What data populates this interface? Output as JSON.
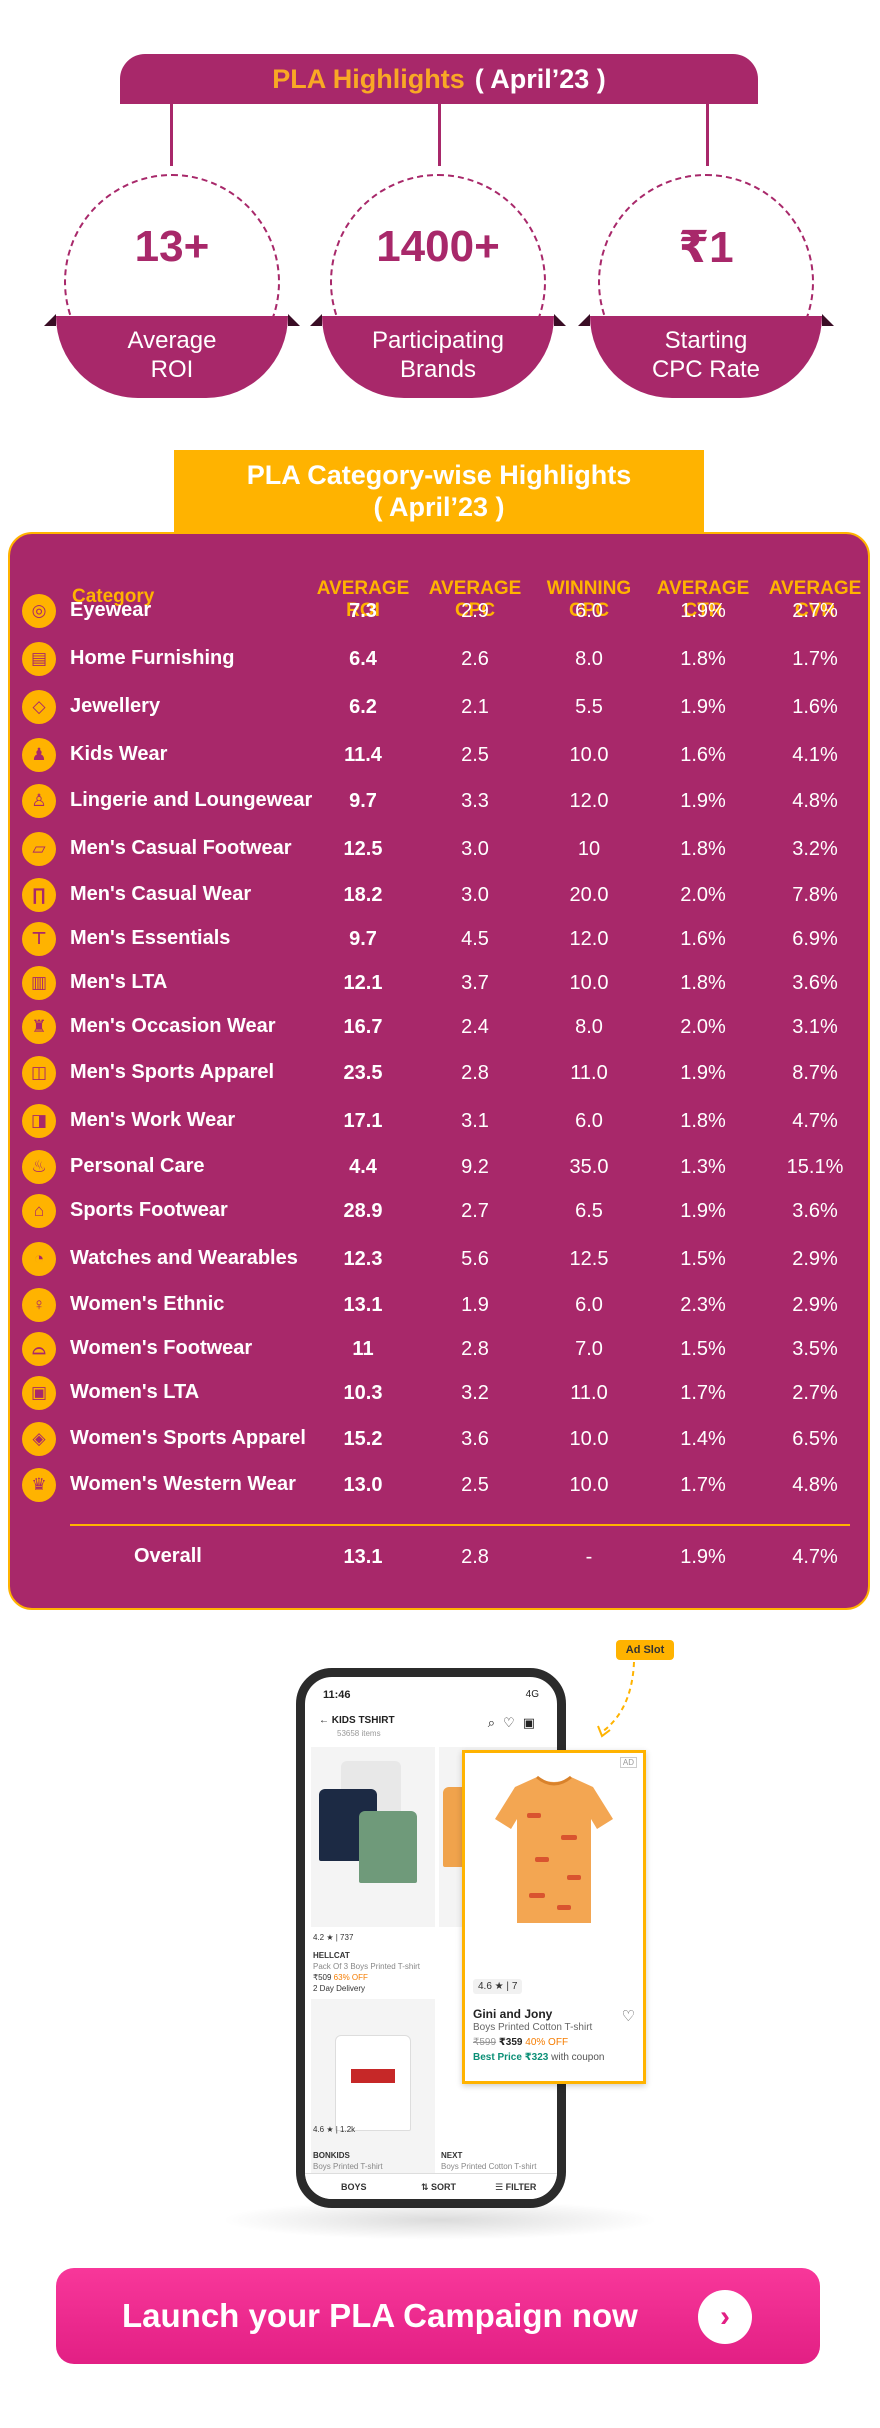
{
  "colors": {
    "primary": "#a8286a",
    "accent": "#ffb300",
    "cta": "#e21f84"
  },
  "highlights": {
    "title_highlight": "PLA Highlights",
    "title_rest": "( April’23 )",
    "stats": [
      {
        "value": "13+",
        "label1": "Average",
        "label2": "ROI"
      },
      {
        "value": "1400+",
        "label1": "Participating",
        "label2": "Brands"
      },
      {
        "value": "₹1",
        "label1": "Starting",
        "label2": "CPC Rate"
      }
    ]
  },
  "category_table": {
    "title_line1": "PLA Category-wise Highlights",
    "title_line2": "( April’23 )",
    "headers": {
      "category": "Category",
      "roi1": "AVERAGE",
      "roi2": "ROI",
      "cpc1": "AVERAGE",
      "cpc2": "CPC",
      "wcpc1": "WINNING",
      "wcpc2": "CPC",
      "ctr1": "AVERAGE",
      "ctr2": "CTR",
      "cvr1": "AVERAGE",
      "cvr2": "CVR"
    },
    "rows": [
      {
        "icon": "eyewear-icon",
        "glyph": "◎",
        "name": "Eyewear",
        "roi": "7.3",
        "cpc": "2.9",
        "wcpc": "6.0",
        "ctr": "1.9%",
        "cvr": "2.7%"
      },
      {
        "icon": "home-furnishing-icon",
        "glyph": "▤",
        "name": "Home Furnishing",
        "roi": "6.4",
        "cpc": "2.6",
        "wcpc": "8.0",
        "ctr": "1.8%",
        "cvr": "1.7%"
      },
      {
        "icon": "jewellery-icon",
        "glyph": "◇",
        "name": "Jewellery",
        "roi": "6.2",
        "cpc": "2.1",
        "wcpc": "5.5",
        "ctr": "1.9%",
        "cvr": "1.6%"
      },
      {
        "icon": "kids-wear-icon",
        "glyph": "♟",
        "name": "Kids Wear",
        "roi": "11.4",
        "cpc": "2.5",
        "wcpc": "10.0",
        "ctr": "1.6%",
        "cvr": "4.1%"
      },
      {
        "icon": "lingerie-icon",
        "glyph": "♙",
        "name": "Lingerie and Loungewear",
        "roi": "9.7",
        "cpc": "3.3",
        "wcpc": "12.0",
        "ctr": "1.9%",
        "cvr": "4.8%"
      },
      {
        "icon": "casual-footwear-icon",
        "glyph": "▱",
        "name": "Men's Casual Footwear",
        "roi": "12.5",
        "cpc": "3.0",
        "wcpc": "10",
        "ctr": "1.8%",
        "cvr": "3.2%"
      },
      {
        "icon": "trousers-icon",
        "glyph": "∏",
        "name": "Men's Casual Wear",
        "roi": "18.2",
        "cpc": "3.0",
        "wcpc": "20.0",
        "ctr": "2.0%",
        "cvr": "7.8%"
      },
      {
        "icon": "tshirt-icon",
        "glyph": "⊤",
        "name": "Men's Essentials",
        "roi": "9.7",
        "cpc": "4.5",
        "wcpc": "12.0",
        "ctr": "1.6%",
        "cvr": "6.9%"
      },
      {
        "icon": "lta-icon",
        "glyph": "▥",
        "name": "Men's LTA",
        "roi": "12.1",
        "cpc": "3.7",
        "wcpc": "10.0",
        "ctr": "1.8%",
        "cvr": "3.6%"
      },
      {
        "icon": "occasion-wear-icon",
        "glyph": "♜",
        "name": "Men's Occasion Wear",
        "roi": "16.7",
        "cpc": "2.4",
        "wcpc": "8.0",
        "ctr": "2.0%",
        "cvr": "3.1%"
      },
      {
        "icon": "sports-apparel-icon",
        "glyph": "◫",
        "name": "Men's Sports Apparel",
        "roi": "23.5",
        "cpc": "2.8",
        "wcpc": "11.0",
        "ctr": "1.9%",
        "cvr": "8.7%"
      },
      {
        "icon": "work-wear-icon",
        "glyph": "◨",
        "name": "Men's Work Wear",
        "roi": "17.1",
        "cpc": "3.1",
        "wcpc": "6.0",
        "ctr": "1.8%",
        "cvr": "4.7%"
      },
      {
        "icon": "personal-care-icon",
        "glyph": "♨",
        "name": "Personal Care",
        "roi": "4.4",
        "cpc": "9.2",
        "wcpc": "35.0",
        "ctr": "1.3%",
        "cvr": "15.1%"
      },
      {
        "icon": "sports-footwear-icon",
        "glyph": "⌂",
        "name": "Sports Footwear",
        "roi": "28.9",
        "cpc": "2.7",
        "wcpc": "6.5",
        "ctr": "1.9%",
        "cvr": "3.6%"
      },
      {
        "icon": "watch-icon",
        "glyph": "◔",
        "name": "Watches and Wearables",
        "roi": "12.3",
        "cpc": "5.6",
        "wcpc": "12.5",
        "ctr": "1.5%",
        "cvr": "2.9%"
      },
      {
        "icon": "ethnic-wear-icon",
        "glyph": "♀",
        "name": "Women's Ethnic",
        "roi": "13.1",
        "cpc": "1.9",
        "wcpc": "6.0",
        "ctr": "2.3%",
        "cvr": "2.9%"
      },
      {
        "icon": "women-footwear-icon",
        "glyph": "⌓",
        "name": "Women's Footwear",
        "roi": "11",
        "cpc": "2.8",
        "wcpc": "7.0",
        "ctr": "1.5%",
        "cvr": "3.5%"
      },
      {
        "icon": "women-lta-icon",
        "glyph": "▣",
        "name": "Women's LTA",
        "roi": "10.3",
        "cpc": "3.2",
        "wcpc": "11.0",
        "ctr": "1.7%",
        "cvr": "2.7%"
      },
      {
        "icon": "women-sports-icon",
        "glyph": "◈",
        "name": "Women's Sports Apparel",
        "roi": "15.2",
        "cpc": "3.6",
        "wcpc": "10.0",
        "ctr": "1.4%",
        "cvr": "6.5%"
      },
      {
        "icon": "women-western-icon",
        "glyph": "♛",
        "name": "Women's Western Wear",
        "roi": "13.0",
        "cpc": "2.5",
        "wcpc": "10.0",
        "ctr": "1.7%",
        "cvr": "4.8%"
      }
    ],
    "overall": {
      "name": "Overall",
      "roi": "13.1",
      "cpc": "2.8",
      "wcpc": "-",
      "ctr": "1.9%",
      "cvr": "4.7%"
    }
  },
  "phone": {
    "time": "11:46",
    "signal": "4G",
    "title": "KIDS TSHIRT",
    "subtitle": "53658 items",
    "products": [
      {
        "brand": "HELLCAT",
        "desc": "Pack Of 3 Boys Printed T-shirt",
        "price": "₹509",
        "off": "63% OFF",
        "delivery": "2 Day Delivery",
        "rating": "4.2",
        "count": "737"
      },
      {
        "brand": "BONKIDS",
        "desc": "Boys Printed T-shirt",
        "rating": "4.6",
        "count": "1.2k"
      },
      {
        "brand": "NEXT",
        "desc": "Boys Printed Cotton T-shirt"
      }
    ],
    "bottom_bar": {
      "left": "BOYS",
      "mid": "SORT",
      "right": "FILTER"
    }
  },
  "ad": {
    "slot_label": "Ad Slot",
    "tag": "AD",
    "rating": "4.6",
    "rating_count": "7",
    "brand": "Gini and Jony",
    "desc": "Boys Printed Cotton T-shirt",
    "mrp": "₹599",
    "price": "₹359",
    "off": "40% OFF",
    "best_label": "Best Price ₹323",
    "best_suffix": "with coupon"
  },
  "cta": {
    "label": "Launch your PLA Campaign now",
    "arrow": "›"
  }
}
